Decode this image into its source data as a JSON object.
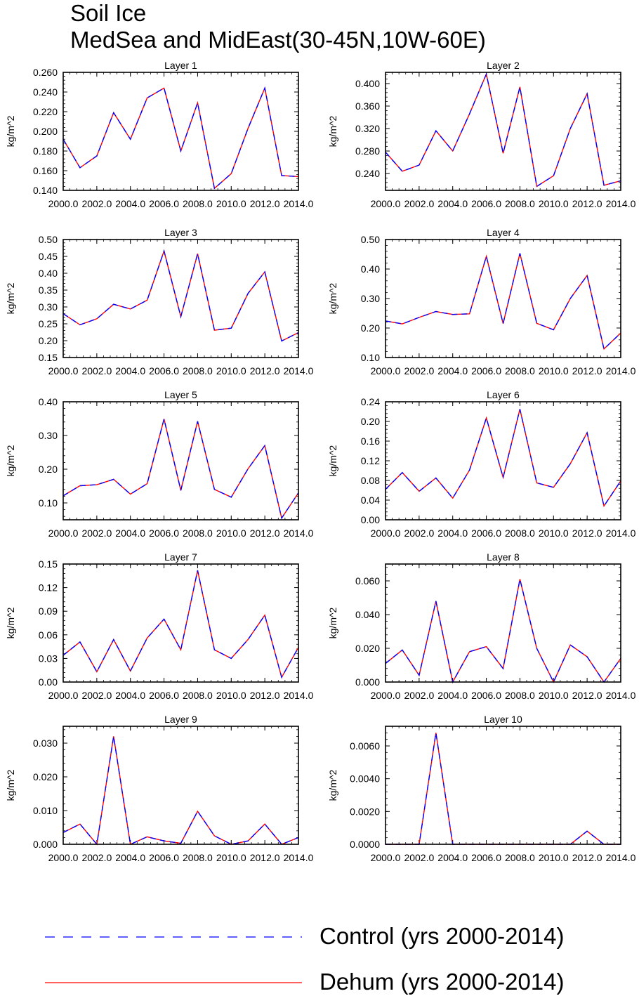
{
  "header": {
    "title": "Soil Ice",
    "subtitle": "MedSea and MidEast(30-45N,10W-60E)"
  },
  "colors": {
    "control": "#0000ff",
    "dehum": "#ff0000"
  },
  "legend": [
    {
      "label": "Control (yrs 2000-2014)",
      "style": "dashed",
      "color": "#0000ff"
    },
    {
      "label": "Dehum (yrs 2000-2014)",
      "style": "solid",
      "color": "#ff0000"
    }
  ],
  "chart_data": [
    {
      "type": "line",
      "title": "Layer 1",
      "ylabel": "kg/m^2",
      "x": [
        2000,
        2001,
        2002,
        2003,
        2004,
        2005,
        2006,
        2007,
        2008,
        2009,
        2010,
        2011,
        2012,
        2013,
        2014
      ],
      "xlim": [
        2000,
        2014
      ],
      "xticks": [
        "2000.0",
        "2002.0",
        "2004.0",
        "2006.0",
        "2008.0",
        "2010.0",
        "2012.0",
        "2014.0"
      ],
      "ylim": [
        0.14,
        0.26
      ],
      "yticks": [
        "0.140",
        "0.160",
        "0.180",
        "0.200",
        "0.220",
        "0.240",
        "0.260"
      ],
      "series": [
        {
          "name": "Control (yrs 2000-2014)",
          "values": [
            0.192,
            0.163,
            0.175,
            0.219,
            0.192,
            0.234,
            0.244,
            0.18,
            0.229,
            0.142,
            0.157,
            0.203,
            0.244,
            0.155,
            0.154
          ]
        },
        {
          "name": "Dehum (yrs 2000-2014)",
          "values": [
            0.192,
            0.163,
            0.175,
            0.219,
            0.192,
            0.234,
            0.244,
            0.18,
            0.229,
            0.142,
            0.157,
            0.203,
            0.244,
            0.155,
            0.154
          ]
        }
      ]
    },
    {
      "type": "line",
      "title": "Layer 2",
      "ylabel": "kg/m^2",
      "x": [
        2000,
        2001,
        2002,
        2003,
        2004,
        2005,
        2006,
        2007,
        2008,
        2009,
        2010,
        2011,
        2012,
        2013,
        2014
      ],
      "xlim": [
        2000,
        2014
      ],
      "xticks": [
        "2000.0",
        "2002.0",
        "2004.0",
        "2006.0",
        "2008.0",
        "2010.0",
        "2012.0",
        "2014.0"
      ],
      "ylim": [
        0.21,
        0.42
      ],
      "yticks": [
        "0.240",
        "0.280",
        "0.320",
        "0.360",
        "0.400"
      ],
      "series": [
        {
          "name": "Control (yrs 2000-2014)",
          "values": [
            0.278,
            0.244,
            0.255,
            0.316,
            0.28,
            0.346,
            0.417,
            0.276,
            0.394,
            0.217,
            0.236,
            0.32,
            0.382,
            0.219,
            0.227
          ]
        },
        {
          "name": "Dehum (yrs 2000-2014)",
          "values": [
            0.278,
            0.244,
            0.255,
            0.316,
            0.28,
            0.346,
            0.417,
            0.276,
            0.394,
            0.217,
            0.236,
            0.32,
            0.382,
            0.219,
            0.227
          ]
        }
      ]
    },
    {
      "type": "line",
      "title": "Layer 3",
      "ylabel": "kg/m^2",
      "x": [
        2000,
        2001,
        2002,
        2003,
        2004,
        2005,
        2006,
        2007,
        2008,
        2009,
        2010,
        2011,
        2012,
        2013,
        2014
      ],
      "xlim": [
        2000,
        2014
      ],
      "xticks": [
        "2000.0",
        "2002.0",
        "2004.0",
        "2006.0",
        "2008.0",
        "2010.0",
        "2012.0",
        "2014.0"
      ],
      "ylim": [
        0.15,
        0.5
      ],
      "yticks": [
        "0.15",
        "0.20",
        "0.25",
        "0.30",
        "0.35",
        "0.40",
        "0.45",
        "0.50"
      ],
      "series": [
        {
          "name": "Control (yrs 2000-2014)",
          "values": [
            0.28,
            0.247,
            0.265,
            0.308,
            0.294,
            0.32,
            0.466,
            0.271,
            0.458,
            0.231,
            0.237,
            0.34,
            0.404,
            0.199,
            0.224
          ]
        },
        {
          "name": "Dehum (yrs 2000-2014)",
          "values": [
            0.28,
            0.247,
            0.265,
            0.308,
            0.294,
            0.32,
            0.466,
            0.271,
            0.458,
            0.231,
            0.237,
            0.34,
            0.404,
            0.199,
            0.224
          ]
        }
      ]
    },
    {
      "type": "line",
      "title": "Layer 4",
      "ylabel": "kg/m^2",
      "x": [
        2000,
        2001,
        2002,
        2003,
        2004,
        2005,
        2006,
        2007,
        2008,
        2009,
        2010,
        2011,
        2012,
        2013,
        2014
      ],
      "xlim": [
        2000,
        2014
      ],
      "xticks": [
        "2000.0",
        "2002.0",
        "2004.0",
        "2006.0",
        "2008.0",
        "2010.0",
        "2012.0",
        "2014.0"
      ],
      "ylim": [
        0.1,
        0.5
      ],
      "yticks": [
        "0.10",
        "0.20",
        "0.30",
        "0.40",
        "0.50"
      ],
      "series": [
        {
          "name": "Control (yrs 2000-2014)",
          "values": [
            0.224,
            0.214,
            0.236,
            0.256,
            0.246,
            0.248,
            0.443,
            0.215,
            0.453,
            0.216,
            0.194,
            0.3,
            0.378,
            0.129,
            0.183
          ]
        },
        {
          "name": "Dehum (yrs 2000-2014)",
          "values": [
            0.224,
            0.214,
            0.236,
            0.256,
            0.246,
            0.248,
            0.443,
            0.215,
            0.453,
            0.216,
            0.194,
            0.3,
            0.378,
            0.129,
            0.183
          ]
        }
      ]
    },
    {
      "type": "line",
      "title": "Layer 5",
      "ylabel": "kg/m^2",
      "x": [
        2000,
        2001,
        2002,
        2003,
        2004,
        2005,
        2006,
        2007,
        2008,
        2009,
        2010,
        2011,
        2012,
        2013,
        2014
      ],
      "xlim": [
        2000,
        2014
      ],
      "xticks": [
        "2000.0",
        "2002.0",
        "2004.0",
        "2006.0",
        "2008.0",
        "2010.0",
        "2012.0",
        "2014.0"
      ],
      "ylim": [
        0.05,
        0.4
      ],
      "yticks": [
        "0.10",
        "0.20",
        "0.30",
        "0.40"
      ],
      "series": [
        {
          "name": "Control (yrs 2000-2014)",
          "values": [
            0.121,
            0.151,
            0.154,
            0.17,
            0.126,
            0.157,
            0.349,
            0.137,
            0.342,
            0.14,
            0.117,
            0.201,
            0.27,
            0.055,
            0.13
          ]
        },
        {
          "name": "Dehum (yrs 2000-2014)",
          "values": [
            0.121,
            0.151,
            0.154,
            0.17,
            0.126,
            0.157,
            0.349,
            0.137,
            0.342,
            0.14,
            0.117,
            0.201,
            0.27,
            0.055,
            0.13
          ]
        }
      ]
    },
    {
      "type": "line",
      "title": "Layer 6",
      "ylabel": "kg/m^2",
      "x": [
        2000,
        2001,
        2002,
        2003,
        2004,
        2005,
        2006,
        2007,
        2008,
        2009,
        2010,
        2011,
        2012,
        2013,
        2014
      ],
      "xlim": [
        2000,
        2014
      ],
      "xticks": [
        "2000.0",
        "2002.0",
        "2004.0",
        "2006.0",
        "2008.0",
        "2010.0",
        "2012.0",
        "2014.0"
      ],
      "ylim": [
        0.0,
        0.24
      ],
      "yticks": [
        "0.00",
        "0.04",
        "0.08",
        "0.12",
        "0.16",
        "0.20",
        "0.24"
      ],
      "series": [
        {
          "name": "Control (yrs 2000-2014)",
          "values": [
            0.062,
            0.096,
            0.058,
            0.085,
            0.044,
            0.101,
            0.207,
            0.086,
            0.225,
            0.075,
            0.066,
            0.114,
            0.177,
            0.028,
            0.079
          ]
        },
        {
          "name": "Dehum (yrs 2000-2014)",
          "values": [
            0.062,
            0.096,
            0.058,
            0.085,
            0.044,
            0.101,
            0.207,
            0.086,
            0.225,
            0.075,
            0.066,
            0.114,
            0.177,
            0.028,
            0.079
          ]
        }
      ]
    },
    {
      "type": "line",
      "title": "Layer 7",
      "ylabel": "kg/m^2",
      "x": [
        2000,
        2001,
        2002,
        2003,
        2004,
        2005,
        2006,
        2007,
        2008,
        2009,
        2010,
        2011,
        2012,
        2013,
        2014
      ],
      "xlim": [
        2000,
        2014
      ],
      "xticks": [
        "2000.0",
        "2002.0",
        "2004.0",
        "2006.0",
        "2008.0",
        "2010.0",
        "2012.0",
        "2014.0"
      ],
      "ylim": [
        0.0,
        0.15
      ],
      "yticks": [
        "0.00",
        "0.03",
        "0.06",
        "0.09",
        "0.12",
        "0.15"
      ],
      "series": [
        {
          "name": "Control (yrs 2000-2014)",
          "values": [
            0.034,
            0.051,
            0.013,
            0.054,
            0.014,
            0.056,
            0.08,
            0.041,
            0.142,
            0.041,
            0.03,
            0.054,
            0.085,
            0.006,
            0.044
          ]
        },
        {
          "name": "Dehum (yrs 2000-2014)",
          "values": [
            0.034,
            0.051,
            0.013,
            0.054,
            0.014,
            0.056,
            0.08,
            0.041,
            0.142,
            0.041,
            0.03,
            0.054,
            0.085,
            0.006,
            0.044
          ]
        }
      ]
    },
    {
      "type": "line",
      "title": "Layer 8",
      "ylabel": "kg/m^2",
      "x": [
        2000,
        2001,
        2002,
        2003,
        2004,
        2005,
        2006,
        2007,
        2008,
        2009,
        2010,
        2011,
        2012,
        2013,
        2014
      ],
      "xlim": [
        2000,
        2014
      ],
      "xticks": [
        "2000.0",
        "2002.0",
        "2004.0",
        "2006.0",
        "2008.0",
        "2010.0",
        "2012.0",
        "2014.0"
      ],
      "ylim": [
        0.0,
        0.07
      ],
      "yticks": [
        "0.000",
        "0.020",
        "0.040",
        "0.060"
      ],
      "series": [
        {
          "name": "Control (yrs 2000-2014)",
          "values": [
            0.011,
            0.019,
            0.004,
            0.048,
            0.0,
            0.018,
            0.021,
            0.008,
            0.061,
            0.02,
            0.0,
            0.022,
            0.015,
            0.0,
            0.014
          ]
        },
        {
          "name": "Dehum (yrs 2000-2014)",
          "values": [
            0.011,
            0.019,
            0.004,
            0.048,
            0.0,
            0.018,
            0.021,
            0.008,
            0.061,
            0.02,
            0.0,
            0.022,
            0.015,
            0.0,
            0.014
          ]
        }
      ]
    },
    {
      "type": "line",
      "title": "Layer 9",
      "ylabel": "kg/m^2",
      "x": [
        2000,
        2001,
        2002,
        2003,
        2004,
        2005,
        2006,
        2007,
        2008,
        2009,
        2010,
        2011,
        2012,
        2013,
        2014
      ],
      "xlim": [
        2000,
        2014
      ],
      "xticks": [
        "2000.0",
        "2002.0",
        "2004.0",
        "2006.0",
        "2008.0",
        "2010.0",
        "2012.0",
        "2014.0"
      ],
      "ylim": [
        0.0,
        0.035
      ],
      "yticks": [
        "0.000",
        "0.010",
        "0.020",
        "0.030"
      ],
      "series": [
        {
          "name": "Control (yrs 2000-2014)",
          "values": [
            0.0035,
            0.006,
            0.0,
            0.032,
            0.0,
            0.0022,
            0.001,
            0.0003,
            0.0098,
            0.0025,
            0.0,
            0.001,
            0.006,
            0.0,
            0.002
          ]
        },
        {
          "name": "Dehum (yrs 2000-2014)",
          "values": [
            0.0035,
            0.006,
            0.0,
            0.032,
            0.0,
            0.0022,
            0.001,
            0.0003,
            0.0098,
            0.0025,
            0.0,
            0.001,
            0.006,
            0.0,
            0.002
          ]
        }
      ]
    },
    {
      "type": "line",
      "title": "Layer 10",
      "ylabel": "kg/m^2",
      "x": [
        2000,
        2001,
        2002,
        2003,
        2004,
        2005,
        2006,
        2007,
        2008,
        2009,
        2010,
        2011,
        2012,
        2013,
        2014
      ],
      "xlim": [
        2000,
        2014
      ],
      "xticks": [
        "2000.0",
        "2002.0",
        "2004.0",
        "2006.0",
        "2008.0",
        "2010.0",
        "2012.0",
        "2014.0"
      ],
      "ylim": [
        0.0,
        0.0072
      ],
      "yticks": [
        "0.0000",
        "0.0020",
        "0.0040",
        "0.0060"
      ],
      "series": [
        {
          "name": "Control (yrs 2000-2014)",
          "values": [
            0,
            0,
            0,
            0.0068,
            0,
            0,
            0,
            0,
            0,
            0,
            0,
            0,
            0.0008,
            0,
            0
          ]
        },
        {
          "name": "Dehum (yrs 2000-2014)",
          "values": [
            0,
            0,
            0,
            0.0068,
            0,
            0,
            0,
            0,
            0,
            0,
            0,
            0,
            0.0008,
            0,
            0
          ]
        }
      ]
    }
  ]
}
